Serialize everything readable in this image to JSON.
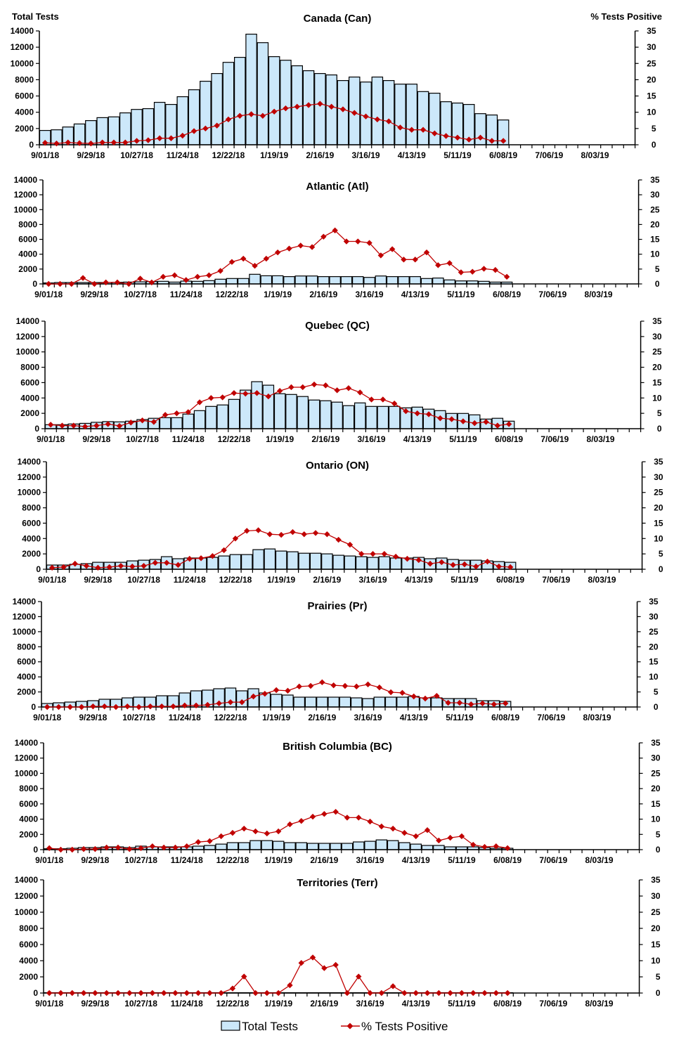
{
  "chart_data": [
    {
      "type": "bar+line",
      "title": "Canada (Can)",
      "ylabel": "Total Tests",
      "y2label": "% Tests Positive",
      "ylim": [
        0,
        14000
      ],
      "y2lim": [
        0,
        35
      ],
      "grid": false,
      "x_tick_labels": [
        "9/01/18",
        "9/29/18",
        "10/27/18",
        "11/24/18",
        "12/22/18",
        "1/19/19",
        "2/16/19",
        "3/16/19",
        "4/13/19",
        "5/11/19",
        "6/08/19",
        "7/06/19",
        "8/03/19"
      ],
      "series": [
        {
          "name": "Total Tests",
          "type": "bar",
          "axis": "left",
          "values": [
            1760,
            1840,
            2190,
            2560,
            2970,
            3340,
            3430,
            3920,
            4350,
            4440,
            5220,
            4960,
            5910,
            6770,
            7810,
            8760,
            10140,
            10750,
            13600,
            12560,
            10840,
            10400,
            9710,
            9110,
            8760,
            8590,
            7900,
            8330,
            7720,
            8330,
            7900,
            7460,
            7460,
            6540,
            6340,
            5300,
            5130,
            4960,
            3830,
            3660,
            3050
          ]
        },
        {
          "name": "% Tests Positive",
          "type": "line",
          "axis": "right",
          "values": [
            0.6,
            0.4,
            0.7,
            0.5,
            0.4,
            0.7,
            0.7,
            0.7,
            1.2,
            1.4,
            2.0,
            2.0,
            2.8,
            4.2,
            5.0,
            5.9,
            7.8,
            8.9,
            9.4,
            8.9,
            10.2,
            11.2,
            11.7,
            12.2,
            12.6,
            11.7,
            10.9,
            9.8,
            8.7,
            7.8,
            7.2,
            5.3,
            4.6,
            4.6,
            3.5,
            2.7,
            2.2,
            1.6,
            2.2,
            1.2,
            1.2
          ]
        }
      ]
    },
    {
      "type": "bar+line",
      "title": "Atlantic (Atl)",
      "ylim": [
        0,
        14000
      ],
      "y2lim": [
        0,
        35
      ],
      "grid": false,
      "x_tick_labels": [
        "9/01/18",
        "9/29/18",
        "10/27/18",
        "11/24/18",
        "12/22/18",
        "1/19/19",
        "2/16/19",
        "3/16/19",
        "4/13/19",
        "5/11/19",
        "6/08/19",
        "7/06/19",
        "8/03/19"
      ],
      "series": [
        {
          "name": "Total Tests",
          "type": "bar",
          "axis": "left",
          "values": [
            130,
            190,
            190,
            190,
            190,
            190,
            220,
            250,
            280,
            320,
            350,
            250,
            380,
            350,
            440,
            630,
            730,
            730,
            1300,
            1100,
            1100,
            980,
            1070,
            1070,
            980,
            980,
            980,
            980,
            880,
            1070,
            980,
            980,
            980,
            730,
            790,
            540,
            410,
            410,
            350,
            250,
            250
          ]
        },
        {
          "name": "% Tests Positive",
          "type": "line",
          "axis": "right",
          "values": [
            0,
            0,
            0,
            2.0,
            0,
            0.5,
            0.5,
            0,
            1.8,
            0.5,
            2.4,
            2.9,
            1.3,
            2.4,
            2.9,
            4.4,
            7.4,
            8.5,
            6.1,
            8.5,
            10.6,
            11.9,
            12.9,
            12.4,
            15.9,
            18.0,
            14.3,
            14.3,
            13.8,
            9.6,
            11.7,
            8.2,
            8.2,
            10.6,
            6.3,
            7.0,
            3.9,
            4.1,
            5.1,
            4.7,
            2.4
          ]
        }
      ]
    },
    {
      "type": "bar+line",
      "title": "Quebec (QC)",
      "ylim": [
        0,
        14000
      ],
      "y2lim": [
        0,
        35
      ],
      "grid": false,
      "x_tick_labels": [
        "9/01/18",
        "9/29/18",
        "10/27/18",
        "11/24/18",
        "12/22/18",
        "1/19/19",
        "2/16/19",
        "3/16/19",
        "4/13/19",
        "5/11/19",
        "6/08/19",
        "7/06/19",
        "8/03/19"
      ],
      "series": [
        {
          "name": "Total Tests",
          "type": "bar",
          "axis": "left",
          "values": [
            520,
            520,
            610,
            700,
            830,
            920,
            890,
            980,
            1190,
            1350,
            1440,
            1440,
            1900,
            2350,
            2900,
            3090,
            3820,
            5020,
            6120,
            5660,
            4560,
            4460,
            4190,
            3730,
            3640,
            3460,
            3000,
            3360,
            2900,
            2900,
            2900,
            2720,
            2810,
            2540,
            2350,
            1990,
            1990,
            1800,
            1250,
            1350,
            980
          ]
        },
        {
          "name": "% Tests Positive",
          "type": "line",
          "axis": "right",
          "values": [
            1.3,
            1.0,
            1.0,
            0.7,
            1.0,
            1.5,
            0.9,
            2.0,
            2.7,
            2.2,
            4.5,
            5.0,
            5.4,
            8.6,
            10.0,
            10.2,
            11.6,
            11.4,
            11.6,
            10.5,
            12.3,
            13.5,
            13.5,
            14.4,
            14.1,
            12.5,
            13.2,
            11.8,
            9.5,
            9.5,
            8.2,
            5.7,
            5.0,
            4.7,
            3.4,
            3.1,
            2.4,
            1.8,
            2.2,
            1.0,
            1.5
          ]
        }
      ]
    },
    {
      "type": "bar+line",
      "title": "Ontario (ON)",
      "ylim": [
        0,
        14000
      ],
      "y2lim": [
        0,
        35
      ],
      "grid": false,
      "x_tick_labels": [
        "9/01/18",
        "9/29/18",
        "10/27/18",
        "11/24/18",
        "12/22/18",
        "1/19/19",
        "2/16/19",
        "3/16/19",
        "4/13/19",
        "5/11/19",
        "6/08/19",
        "7/06/19",
        "8/03/19"
      ],
      "series": [
        {
          "name": "Total Tests",
          "type": "bar",
          "axis": "left",
          "values": [
            550,
            550,
            640,
            730,
            910,
            910,
            910,
            1090,
            1180,
            1270,
            1640,
            1370,
            1460,
            1460,
            1550,
            1730,
            1910,
            1910,
            2550,
            2640,
            2370,
            2280,
            2090,
            2090,
            2000,
            1820,
            1730,
            1640,
            1550,
            1640,
            1460,
            1460,
            1550,
            1370,
            1460,
            1270,
            1180,
            1180,
            1090,
            1000,
            910
          ]
        },
        {
          "name": "% Tests Positive",
          "type": "line",
          "axis": "right",
          "values": [
            0.5,
            0.7,
            1.8,
            1.1,
            0.5,
            0.7,
            1.1,
            0.9,
            1.1,
            2.1,
            2.1,
            1.4,
            3.4,
            3.6,
            4.3,
            6.2,
            10.0,
            12.5,
            12.7,
            11.4,
            11.2,
            12.1,
            11.4,
            11.8,
            11.4,
            9.6,
            8.0,
            5.0,
            5.0,
            5.0,
            4.1,
            3.4,
            3.0,
            1.8,
            2.3,
            1.4,
            1.6,
            0.9,
            2.5,
            0.9,
            0.7
          ]
        }
      ]
    },
    {
      "type": "bar+line",
      "title": "Prairies (Pr)",
      "ylim": [
        0,
        14000
      ],
      "y2lim": [
        0,
        35
      ],
      "grid": false,
      "x_tick_labels": [
        "9/01/18",
        "9/29/18",
        "10/27/18",
        "11/24/18",
        "12/22/18",
        "1/19/19",
        "2/16/19",
        "3/16/19",
        "4/13/19",
        "5/11/19",
        "6/08/19",
        "7/06/19",
        "8/03/19"
      ],
      "series": [
        {
          "name": "Total Tests",
          "type": "bar",
          "axis": "left",
          "values": [
            470,
            560,
            650,
            750,
            840,
            1030,
            1030,
            1210,
            1310,
            1310,
            1490,
            1490,
            1870,
            2150,
            2240,
            2430,
            2520,
            2150,
            2430,
            1870,
            1680,
            1590,
            1310,
            1310,
            1310,
            1310,
            1310,
            1210,
            1120,
            1310,
            1310,
            1310,
            1400,
            1210,
            1210,
            1120,
            1120,
            1120,
            840,
            840,
            750
          ]
        },
        {
          "name": "% Tests Positive",
          "type": "line",
          "axis": "right",
          "values": [
            0,
            0,
            0,
            0,
            0.2,
            0.2,
            0,
            0.2,
            0,
            0.2,
            0.2,
            0.2,
            0.5,
            0.5,
            0.7,
            1.2,
            1.6,
            1.6,
            3.5,
            4.4,
            5.6,
            5.4,
            6.8,
            7.0,
            8.2,
            7.2,
            7.0,
            6.8,
            7.5,
            6.5,
            4.9,
            4.7,
            3.5,
            2.8,
            3.7,
            1.4,
            1.4,
            0.9,
            1.2,
            0.9,
            1.2
          ]
        }
      ]
    },
    {
      "type": "bar+line",
      "title": "British Columbia (BC)",
      "ylim": [
        0,
        14000
      ],
      "y2lim": [
        0,
        35
      ],
      "grid": false,
      "x_tick_labels": [
        "9/01/18",
        "9/29/18",
        "10/27/18",
        "11/24/18",
        "12/22/18",
        "1/19/19",
        "2/16/19",
        "3/16/19",
        "4/13/19",
        "5/11/19",
        "6/08/19",
        "7/06/19",
        "8/03/19"
      ],
      "series": [
        {
          "name": "Total Tests",
          "type": "bar",
          "axis": "left",
          "values": [
            120,
            120,
            180,
            280,
            280,
            370,
            370,
            280,
            460,
            370,
            370,
            370,
            370,
            460,
            550,
            730,
            920,
            920,
            1190,
            1190,
            1100,
            920,
            920,
            830,
            830,
            830,
            830,
            1010,
            1100,
            1280,
            1190,
            920,
            730,
            550,
            550,
            370,
            370,
            370,
            280,
            180,
            180
          ]
        },
        {
          "name": "% Tests Positive",
          "type": "line",
          "axis": "right",
          "values": [
            0.5,
            0,
            0,
            0.2,
            0.2,
            0.7,
            0.7,
            0.2,
            0.5,
            1.1,
            0.7,
            0.7,
            1.1,
            2.5,
            2.8,
            4.4,
            5.5,
            6.9,
            6.0,
            5.3,
            6.0,
            8.3,
            9.4,
            10.8,
            11.7,
            12.4,
            10.5,
            10.5,
            9.2,
            7.6,
            6.9,
            5.5,
            4.4,
            6.4,
            3.0,
            3.9,
            4.4,
            1.6,
            0.9,
            1.1,
            0.5
          ]
        }
      ]
    },
    {
      "type": "bar+line",
      "title": "Territories (Terr)",
      "ylim": [
        0,
        14000
      ],
      "y2lim": [
        0,
        35
      ],
      "grid": false,
      "x_tick_labels": [
        "9/01/18",
        "9/29/18",
        "10/27/18",
        "11/24/18",
        "12/22/18",
        "1/19/19",
        "2/16/19",
        "3/16/19",
        "4/13/19",
        "5/11/19",
        "6/08/19",
        "7/06/19",
        "8/03/19"
      ],
      "series": [
        {
          "name": "Total Tests",
          "type": "bar",
          "axis": "left",
          "values": [
            40,
            40,
            40,
            40,
            40,
            40,
            40,
            40,
            40,
            40,
            40,
            40,
            40,
            40,
            40,
            40,
            40,
            40,
            40,
            40,
            40,
            40,
            40,
            40,
            40,
            40,
            40,
            40,
            40,
            40,
            40,
            40,
            40,
            40,
            40,
            40,
            40,
            40,
            40,
            40,
            40
          ]
        },
        {
          "name": "% Tests Positive",
          "type": "line",
          "axis": "right",
          "values": [
            0,
            0,
            0,
            0,
            0,
            0,
            0,
            0,
            0,
            0,
            0,
            0,
            0,
            0,
            0,
            0,
            1.4,
            5.1,
            0,
            0,
            0,
            2.4,
            9.3,
            11.0,
            7.7,
            8.7,
            0,
            5.1,
            0,
            0,
            2.1,
            0,
            0,
            0,
            0,
            0,
            0,
            0,
            0,
            0,
            0
          ]
        }
      ]
    }
  ],
  "y_ticks": [
    "0",
    "2000",
    "4000",
    "6000",
    "8000",
    "10000",
    "12000",
    "14000"
  ],
  "y2_ticks": [
    "0",
    "5",
    "10",
    "15",
    "20",
    "25",
    "30",
    "35"
  ],
  "legend": {
    "bar_label": "Total Tests",
    "line_label": "% Tests Positive",
    "position": "bottom"
  },
  "colors": {
    "bar_fill": "#cce8fa",
    "bar_stroke": "#000000",
    "line": "#c00000"
  }
}
